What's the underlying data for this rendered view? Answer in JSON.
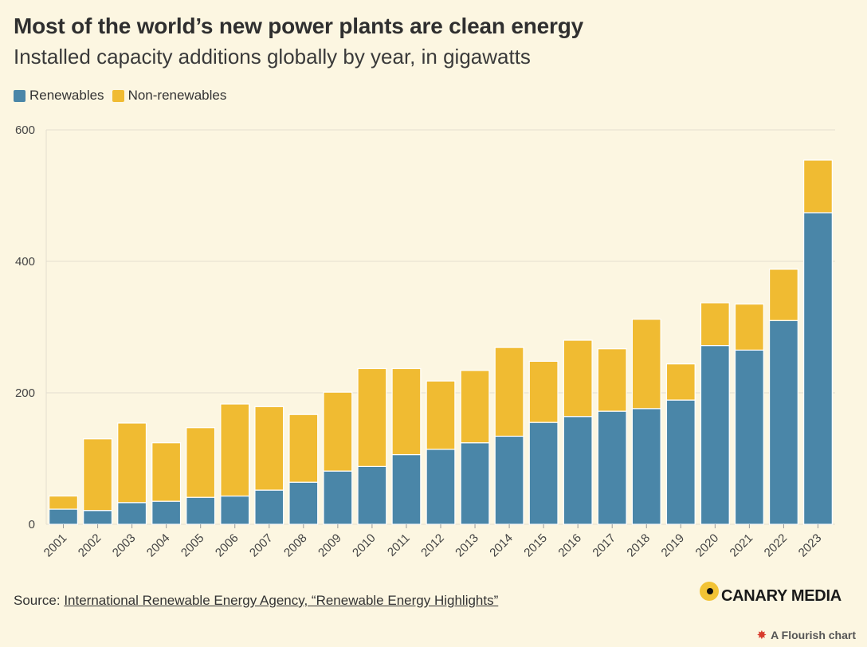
{
  "header": {
    "title": "Most of the world’s new power plants are clean energy",
    "subtitle": "Installed capacity additions globally by year, in gigawatts"
  },
  "legend": [
    {
      "label": "Renewables",
      "color": "#4a86a8"
    },
    {
      "label": "Non-renewables",
      "color": "#f0bb32"
    }
  ],
  "chart_data": {
    "type": "bar",
    "stacked": true,
    "categories": [
      "2001",
      "2002",
      "2003",
      "2004",
      "2005",
      "2006",
      "2007",
      "2008",
      "2009",
      "2010",
      "2011",
      "2012",
      "2013",
      "2014",
      "2015",
      "2016",
      "2017",
      "2018",
      "2019",
      "2020",
      "2021",
      "2022",
      "2023"
    ],
    "series": [
      {
        "name": "Renewables",
        "color": "#4a86a8",
        "values": [
          23,
          21,
          33,
          35,
          41,
          43,
          52,
          64,
          81,
          88,
          106,
          114,
          124,
          134,
          155,
          164,
          172,
          176,
          189,
          272,
          265,
          310,
          474
        ]
      },
      {
        "name": "Non-renewables",
        "color": "#f0bb32",
        "values": [
          20,
          109,
          121,
          89,
          106,
          140,
          127,
          103,
          120,
          149,
          131,
          104,
          110,
          135,
          93,
          116,
          95,
          136,
          55,
          65,
          70,
          78,
          80
        ]
      }
    ],
    "ylim": [
      0,
      600
    ],
    "yticks": [
      0,
      200,
      400,
      600
    ],
    "grid": true,
    "legend_position": "top-left"
  },
  "footer": {
    "source_prefix": "Source: ",
    "source_link": "International Renewable Energy Agency, “Renewable Energy Highlights”",
    "brand": "CANARY MEDIA",
    "flourish": "A Flourish chart"
  }
}
